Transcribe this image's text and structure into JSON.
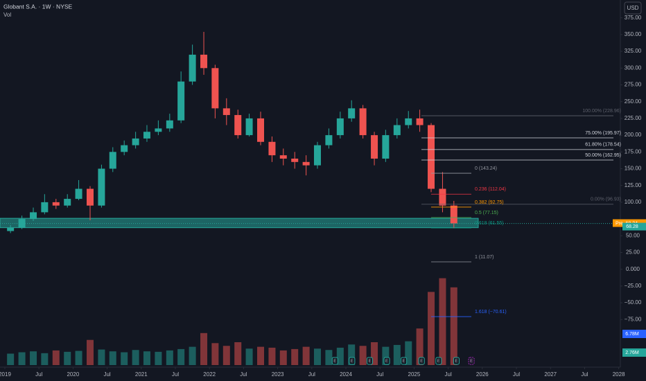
{
  "header": {
    "title": "Globant S.A. · 1W · NYSE",
    "indicator": "Vol",
    "currency": "USD"
  },
  "chart_data": {
    "type": "candlestick",
    "x": [
      2019.083,
      2019.25,
      2019.417,
      2019.583,
      2019.75,
      2019.917,
      2020.083,
      2020.25,
      2020.417,
      2020.583,
      2020.75,
      2020.917,
      2021.083,
      2021.25,
      2021.417,
      2021.583,
      2021.75,
      2021.917,
      2022.083,
      2022.25,
      2022.417,
      2022.583,
      2022.75,
      2022.917,
      2023.083,
      2023.25,
      2023.417,
      2023.583,
      2023.75,
      2023.917,
      2024.083,
      2024.25,
      2024.417,
      2024.583,
      2024.75,
      2024.917,
      2025.083,
      2025.25,
      2025.417,
      2025.583
    ],
    "open": [
      57,
      62,
      75,
      85,
      100,
      95,
      105,
      120,
      95,
      150,
      175,
      185,
      195,
      205,
      210,
      222,
      280,
      320,
      300,
      240,
      230,
      200,
      225,
      190,
      170,
      165,
      160,
      155,
      185,
      200,
      225,
      240,
      200,
      165,
      200,
      215,
      225,
      215,
      120,
      95
    ],
    "high": [
      66,
      80,
      92,
      112,
      105,
      112,
      133,
      124,
      156,
      182,
      192,
      205,
      215,
      222,
      232,
      295,
      335,
      354,
      305,
      255,
      238,
      232,
      235,
      198,
      180,
      175,
      170,
      190,
      210,
      235,
      252,
      245,
      205,
      208,
      225,
      236,
      238,
      218,
      145,
      102
    ],
    "low": [
      54,
      60,
      72,
      82,
      90,
      92,
      103,
      73,
      92,
      145,
      170,
      180,
      190,
      200,
      205,
      218,
      275,
      290,
      225,
      215,
      195,
      198,
      185,
      160,
      155,
      150,
      140,
      150,
      180,
      195,
      220,
      195,
      155,
      160,
      195,
      210,
      205,
      115,
      85,
      61
    ],
    "close": [
      62,
      75,
      85,
      100,
      95,
      105,
      120,
      95,
      150,
      175,
      185,
      195,
      205,
      210,
      222,
      280,
      320,
      300,
      240,
      230,
      200,
      225,
      190,
      170,
      165,
      160,
      155,
      185,
      200,
      225,
      240,
      200,
      165,
      200,
      215,
      225,
      215,
      120,
      95,
      68.28
    ],
    "volume": [
      2.5,
      2.8,
      3,
      2.6,
      3.2,
      2.9,
      3.1,
      5.5,
      3.4,
      3,
      2.8,
      3.3,
      3,
      2.9,
      3.2,
      3.5,
      4,
      7,
      4.8,
      4.2,
      5,
      3.6,
      4,
      3.8,
      3.2,
      3.5,
      4,
      3.6,
      3.3,
      3.8,
      4.5,
      4.2,
      5,
      4,
      4.4,
      5.2,
      8,
      16,
      19,
      17
    ],
    "up_color": "#26a69a",
    "down_color": "#ef5350",
    "xlim": [
      2018.929,
      2028.024
    ],
    "xticks": [
      2019,
      {
        "value": 2019.5,
        "label": "Jul"
      },
      2020,
      {
        "value": 2020.5,
        "label": "Jul"
      },
      2021,
      {
        "value": 2021.5,
        "label": "Jul"
      },
      2022,
      {
        "value": 2022.5,
        "label": "Jul"
      },
      2023,
      {
        "value": 2023.5,
        "label": "Jul"
      },
      2024,
      {
        "value": 2024.5,
        "label": "Jul"
      },
      2025,
      {
        "value": 2025.5,
        "label": "Jul"
      },
      2026,
      {
        "value": 2026.5,
        "label": "Jul"
      },
      2027,
      {
        "value": 2027.5,
        "label": "Jul"
      },
      2028
    ],
    "ylim": [
      -100,
      400
    ],
    "yticks": [
      {
        "value": 375,
        "label": "375.00"
      },
      {
        "value": 350,
        "label": "350.00"
      },
      {
        "value": 325,
        "label": "325.00"
      },
      {
        "value": 300,
        "label": "300.00"
      },
      {
        "value": 275,
        "label": "275.00"
      },
      {
        "value": 250,
        "label": "250.00"
      },
      {
        "value": 225,
        "label": "225.00"
      },
      {
        "value": 200,
        "label": "200.00"
      },
      {
        "value": 175,
        "label": "175.00"
      },
      {
        "value": 150,
        "label": "150.00"
      },
      {
        "value": 125,
        "label": "125.00"
      },
      {
        "value": 100,
        "label": "100.00"
      },
      {
        "value": 50,
        "label": "50.00"
      },
      {
        "value": 25,
        "label": "25.00"
      },
      {
        "value": 0,
        "label": "0.000"
      },
      {
        "value": -25,
        "label": "−25.00"
      },
      {
        "value": -50,
        "label": "−50.00"
      },
      {
        "value": -75,
        "label": "−75.00"
      }
    ],
    "grid": false,
    "support_zone": [
      62,
      76
    ],
    "fib_right": [
      {
        "label": "100.00% (228.96)",
        "price": 228.96,
        "color": "#5d606b"
      },
      {
        "label": "75.00% (195.97)",
        "price": 195.97,
        "color": "#d1d4dc"
      },
      {
        "label": "61.80% (178.54)",
        "price": 178.54,
        "color": "#d1d4dc"
      },
      {
        "label": "50.00% (162.95)",
        "price": 162.95,
        "color": "#d1d4dc"
      },
      {
        "label": "0.00% (96.93)",
        "price": 96.93,
        "color": "#5d606b"
      }
    ],
    "fib_left": [
      {
        "label": "0 (143.24)",
        "price": 143.24,
        "color": "#9598a1"
      },
      {
        "label": "0.236 (112.04)",
        "price": 112.04,
        "color": "#f23645"
      },
      {
        "label": "0.382 (92.75)",
        "price": 92.75,
        "color": "#ff9800"
      },
      {
        "label": "0.5 (77.15)",
        "price": 77.15,
        "color": "#4caf50"
      },
      {
        "label": "0.618 (61.55)",
        "price": 61.55,
        "color": "#089981"
      },
      {
        "label": "1 (11.07)",
        "price": 11.07,
        "color": "#9598a1"
      },
      {
        "label": "1.618 (−70.61)",
        "price": -70.61,
        "color": "#2962ff"
      }
    ],
    "pre_market": {
      "text": "Pre",
      "value": 68.34
    },
    "last_price": 68.28,
    "volume_badges": [
      {
        "value": 6.78,
        "label": "6.78M",
        "color": "#2962ff"
      },
      {
        "value": 2.76,
        "label": "2.76M",
        "color": "#26a69a"
      }
    ],
    "earnings": {
      "label": "E",
      "x": [
        2023.84,
        2024.09,
        2024.35,
        2024.6,
        2024.85,
        2025.11,
        2025.36,
        2025.62
      ],
      "next": 2025.84
    }
  }
}
